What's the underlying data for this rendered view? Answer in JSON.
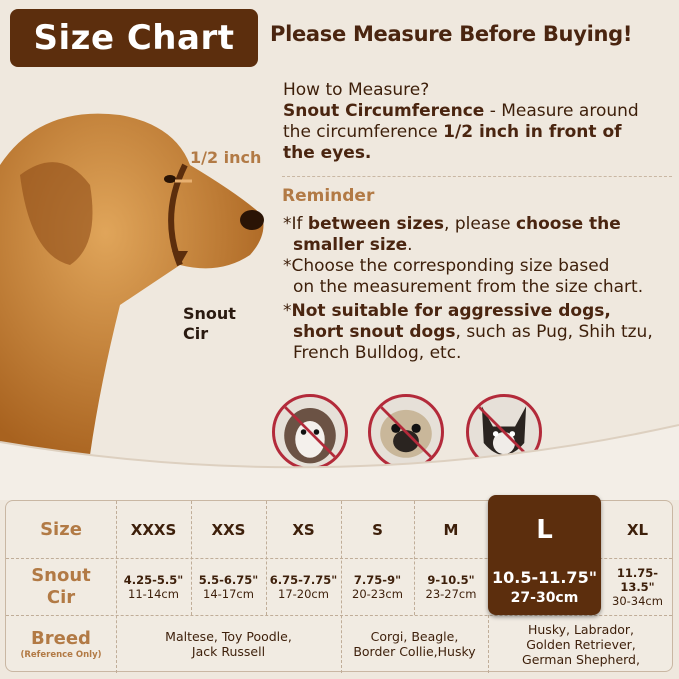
{
  "title": "Size Chart",
  "heading": "Please Measure Before Buying!",
  "dog_labels": {
    "half_inch": "1/2 inch",
    "snout_line1": "Snout",
    "snout_line2": "Cir"
  },
  "how_to": {
    "question": "How to Measure?",
    "term": "Snout Circumference",
    "desc1": " - Measure around",
    "desc2": "the circumference ",
    "bold2": "1/2 inch in front of",
    "bold3": "the eyes."
  },
  "reminder": {
    "title": "Reminder",
    "r1_a": "*If ",
    "r1_b": "between sizes",
    "r1_c": ", please ",
    "r1_d": "choose the",
    "r1_e": "smaller size",
    "r1_f": ".",
    "r2_a": "*Choose the corresponding size based",
    "r2_b": "on the measurement from the size chart.",
    "r3_a": "*",
    "r3_b": "Not suitable for aggressive dogs,",
    "r3_c": "short snout dogs",
    "r3_d": ", such as Pug, Shih tzu,",
    "r3_e": "French Bulldog, etc."
  },
  "not_suitable_icons": [
    "shih-tzu",
    "pug",
    "french-bulldog"
  ],
  "colors": {
    "brand_brown": "#5c2e0d",
    "label_tan": "#b27a45",
    "prohibit_red": "#b32a3a"
  },
  "table": {
    "size_label": "Size",
    "snout_label1": "Snout",
    "snout_label2": "Cir",
    "breed_label": "Breed",
    "breed_note": "(Reference Only)",
    "highlighted": "L",
    "sizes": [
      {
        "size": "XXXS",
        "in": "4.25-5.5\"",
        "cm": "11-14cm"
      },
      {
        "size": "XXS",
        "in": "5.5-6.75\"",
        "cm": "14-17cm"
      },
      {
        "size": "XS",
        "in": "6.75-7.75\"",
        "cm": "17-20cm"
      },
      {
        "size": "S",
        "in": "7.75-9\"",
        "cm": "20-23cm"
      },
      {
        "size": "M",
        "in": "9-10.5\"",
        "cm": "23-27cm"
      },
      {
        "size": "L",
        "in": "10.5-11.75\"",
        "cm": "27-30cm"
      },
      {
        "size": "XL",
        "in": "11.75-13.5\"",
        "cm": "30-34cm"
      }
    ],
    "breeds": [
      {
        "l1": "Maltese, Toy Poodle,",
        "l2": "Jack Russell"
      },
      {
        "l1": "Corgi, Beagle,",
        "l2": "Border Collie,Husky"
      },
      {
        "l1": "Husky, Labrador,",
        "l2": "Golden Retriever,",
        "l3": "German Shepherd,"
      }
    ]
  }
}
